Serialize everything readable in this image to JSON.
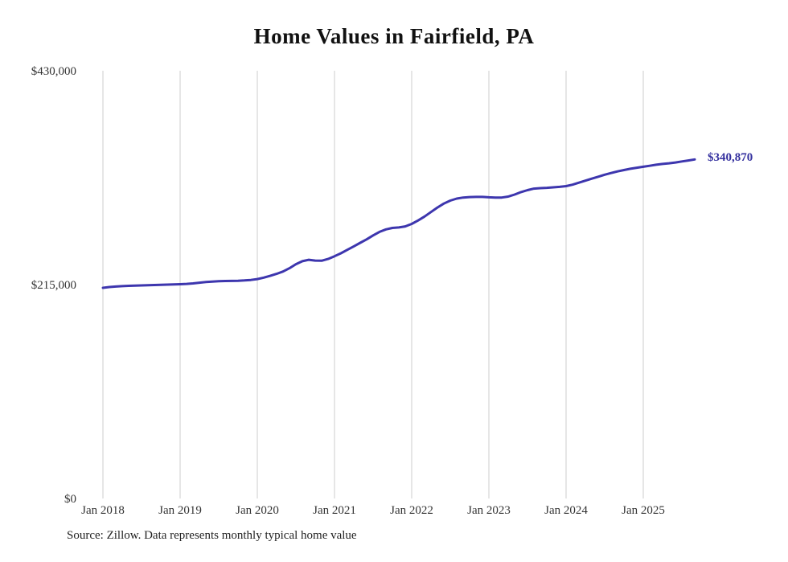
{
  "chart_data": {
    "type": "line",
    "title": "Home Values in Fairfield, PA",
    "source_note": "Source: Zillow. Data represents monthly typical home value",
    "end_label": "$340,870",
    "end_value": 340870,
    "line_color": "#3d36ae",
    "end_label_color": "#332f9e",
    "grid_color": "#cccccc",
    "grid": "vertical-only",
    "legend": "none",
    "ylim": [
      0,
      430000
    ],
    "y_ticks": [
      {
        "value": 0,
        "label": "$0"
      },
      {
        "value": 215000,
        "label": "$215,000"
      },
      {
        "value": 430000,
        "label": "$430,000"
      }
    ],
    "x_start": "2018-01",
    "x_interval": "month",
    "x_tick_labels": [
      "Jan 2018",
      "Jan 2019",
      "Jan 2020",
      "Jan 2021",
      "Jan 2022",
      "Jan 2023",
      "Jan 2024",
      "Jan 2025"
    ],
    "x_gridline_months": [
      0,
      12,
      24,
      36,
      48,
      60,
      72,
      84
    ],
    "series": [
      {
        "name": "Monthly typical home value",
        "values": [
          211800,
          212600,
          213100,
          213500,
          213800,
          214000,
          214200,
          214400,
          214600,
          214800,
          215000,
          215200,
          215400,
          215700,
          216200,
          216900,
          217600,
          218100,
          218400,
          218600,
          218700,
          218900,
          219200,
          219700,
          220600,
          222000,
          223800,
          225800,
          228200,
          231500,
          235500,
          238500,
          240000,
          239200,
          239000,
          240800,
          243500,
          246500,
          250000,
          253500,
          257000,
          260500,
          264500,
          268000,
          270500,
          272000,
          272500,
          273500,
          276000,
          279500,
          283500,
          288000,
          292500,
          296500,
          299500,
          301500,
          302500,
          303000,
          303200,
          303200,
          302800,
          302500,
          302500,
          303500,
          305500,
          308000,
          310000,
          311500,
          312000,
          312300,
          312800,
          313300,
          314000,
          315500,
          317500,
          319500,
          321500,
          323500,
          325500,
          327200,
          328800,
          330200,
          331500,
          332500,
          333500,
          334500,
          335500,
          336300,
          337000,
          337800,
          338800,
          339800,
          340870
        ]
      }
    ]
  }
}
